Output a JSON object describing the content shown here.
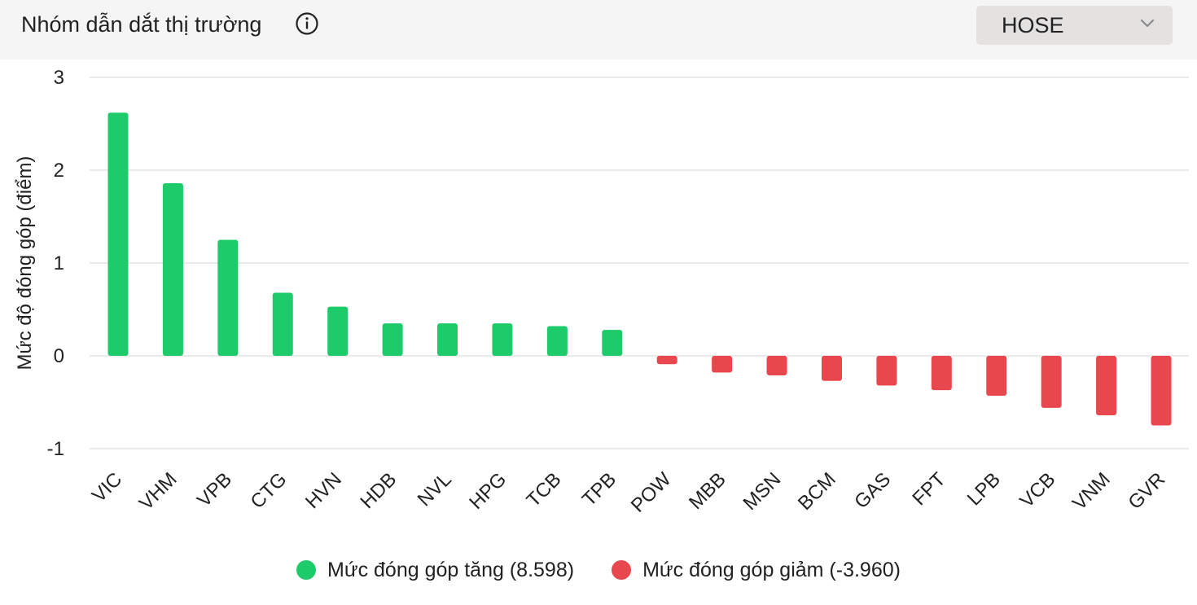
{
  "header": {
    "title": "Nhóm dẫn dắt thị trường",
    "info_icon": "info-circle-icon",
    "exchange_select": {
      "selected": "HOSE",
      "icon": "chevron-down-icon"
    }
  },
  "colors": {
    "positive": "#1ecb6b",
    "negative": "#e8474d",
    "grid": "#e3e3e3",
    "header_bg": "#f5f5f5",
    "select_bg": "#e4e1e1"
  },
  "chart_data": {
    "type": "bar",
    "ylabel": "Mức độ đóng góp (điểm)",
    "ylim": [
      -1,
      3
    ],
    "yticks": [
      3,
      2,
      1,
      0,
      -1
    ],
    "grid": true,
    "legend_position": "bottom-center",
    "categories": [
      "VIC",
      "VHM",
      "VPB",
      "CTG",
      "HVN",
      "HDB",
      "NVL",
      "HPG",
      "TCB",
      "TPB",
      "POW",
      "MBB",
      "MSN",
      "BCM",
      "GAS",
      "FPT",
      "LPB",
      "VCB",
      "VNM",
      "GVR"
    ],
    "values": [
      2.62,
      1.86,
      1.25,
      0.68,
      0.53,
      0.35,
      0.35,
      0.35,
      0.32,
      0.28,
      -0.09,
      -0.18,
      -0.21,
      -0.27,
      -0.32,
      -0.37,
      -0.43,
      -0.56,
      -0.64,
      -0.75
    ],
    "series": [
      {
        "name": "Mức đóng góp tăng (8.598)",
        "color": "#1ecb6b"
      },
      {
        "name": "Mức đóng góp giảm (-3.960)",
        "color": "#e8474d"
      }
    ]
  }
}
